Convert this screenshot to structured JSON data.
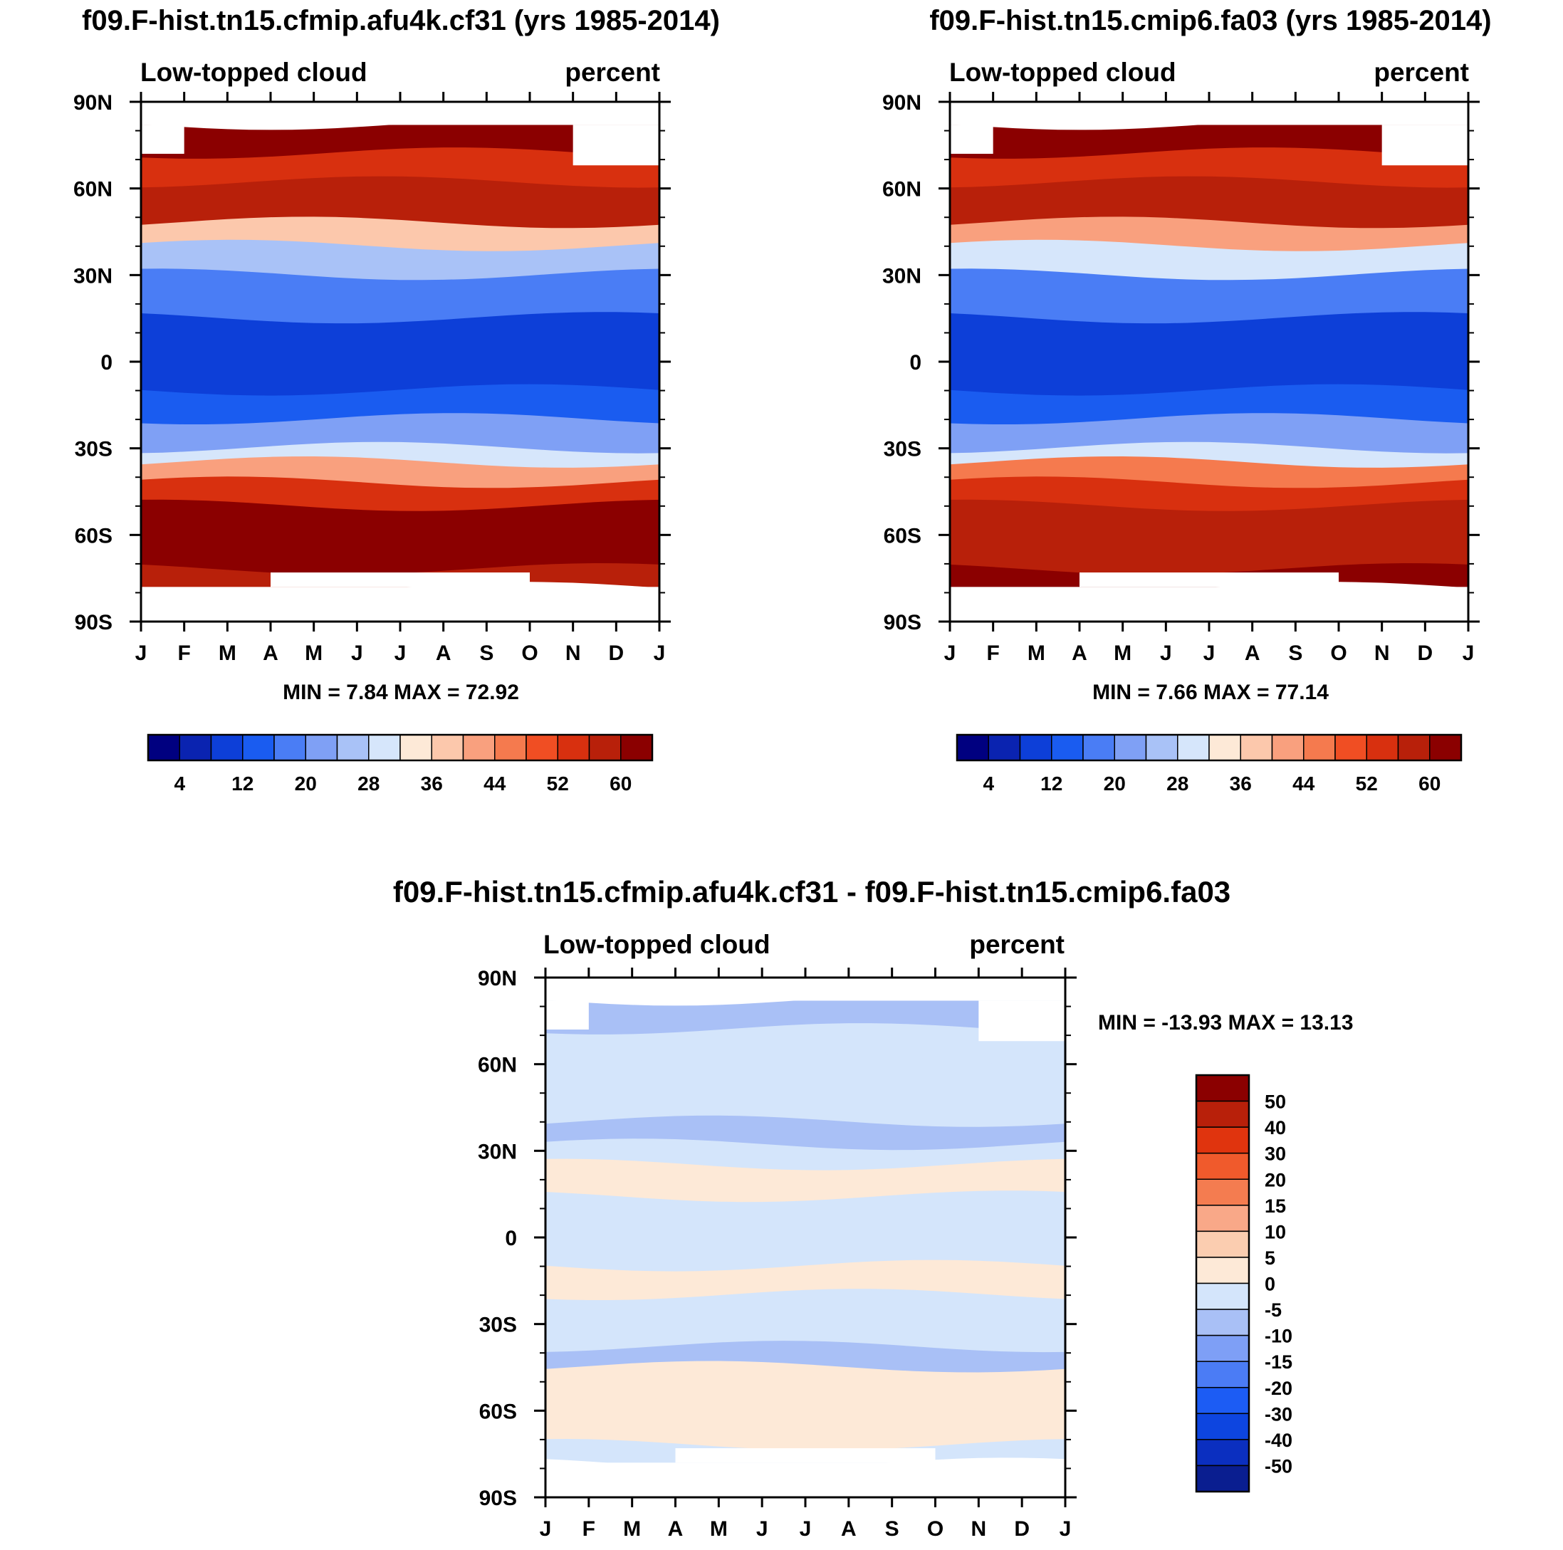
{
  "months": [
    "J",
    "F",
    "M",
    "A",
    "M",
    "J",
    "J",
    "A",
    "S",
    "O",
    "N",
    "D",
    "J"
  ],
  "lat_labels": [
    "90N",
    "60N",
    "30N",
    "0",
    "30S",
    "60S",
    "90S"
  ],
  "palette_abs": [
    "#000080",
    "#0a23b0",
    "#0d3fd8",
    "#1a5cf0",
    "#4a7df5",
    "#7fa0f5",
    "#a9c2f7",
    "#d6e6fb",
    "#fde9d7",
    "#fcc8ac",
    "#f9a07e",
    "#f57a4e",
    "#f04e23",
    "#d8300f",
    "#b8200a",
    "#8b0000"
  ],
  "palette_diff": [
    "#0a1e90",
    "#0b2fc0",
    "#0d45e0",
    "#1c5cf4",
    "#4b7cf5",
    "#7e9ff6",
    "#a9c0f6",
    "#d4e5fb",
    "#fde9d7",
    "#fbcdb0",
    "#f9a888",
    "#f47c50",
    "#f05a2c",
    "#e0340e",
    "#b8200a",
    "#8b0000"
  ],
  "chart_data": [
    {
      "type": "heatmap",
      "title": "f09.F-hist.tn15.cfmip.afu4k.cf31 (yrs 1985-2014)",
      "left_label": "Low-topped cloud",
      "right_label": "percent",
      "x": [
        "J",
        "F",
        "M",
        "A",
        "M",
        "J",
        "J",
        "A",
        "S",
        "O",
        "N",
        "D",
        "J"
      ],
      "ylim": [
        -90,
        90
      ],
      "min_max": "MIN =   7.84 MAX =  72.92",
      "colorbar_labels": [
        "4",
        "12",
        "20",
        "28",
        "36",
        "44",
        "52",
        "60"
      ],
      "levels": [
        0,
        4,
        8,
        12,
        16,
        20,
        24,
        28,
        32,
        36,
        40,
        44,
        48,
        52,
        56,
        60
      ],
      "bands": [
        {
          "lat": [
            72,
            82
          ],
          "value": 62
        },
        {
          "lat": [
            62,
            72
          ],
          "value": 52
        },
        {
          "lat": [
            48,
            62
          ],
          "value": 56
        },
        {
          "lat": [
            40,
            48
          ],
          "value": 38
        },
        {
          "lat": [
            30,
            40
          ],
          "value": 26
        },
        {
          "lat": [
            15,
            30
          ],
          "value": 18
        },
        {
          "lat": [
            -10,
            15
          ],
          "value": 10
        },
        {
          "lat": [
            -20,
            -10
          ],
          "value": 15
        },
        {
          "lat": [
            -30,
            -20
          ],
          "value": 22
        },
        {
          "lat": [
            -35,
            -30
          ],
          "value": 30
        },
        {
          "lat": [
            -42,
            -35
          ],
          "value": 42
        },
        {
          "lat": [
            -50,
            -42
          ],
          "value": 52
        },
        {
          "lat": [
            -72,
            -50
          ],
          "value": 60
        },
        {
          "lat": [
            -78,
            -72
          ],
          "value": 56
        }
      ]
    },
    {
      "type": "heatmap",
      "title": "f09.F-hist.tn15.cmip6.fa03 (yrs 1985-2014)",
      "left_label": "Low-topped cloud",
      "right_label": "percent",
      "x": [
        "J",
        "F",
        "M",
        "A",
        "M",
        "J",
        "J",
        "A",
        "S",
        "O",
        "N",
        "D",
        "J"
      ],
      "ylim": [
        -90,
        90
      ],
      "min_max": "MIN =   7.66 MAX =  77.14",
      "colorbar_labels": [
        "4",
        "12",
        "20",
        "28",
        "36",
        "44",
        "52",
        "60"
      ],
      "levels": [
        0,
        4,
        8,
        12,
        16,
        20,
        24,
        28,
        32,
        36,
        40,
        44,
        48,
        52,
        56,
        60
      ],
      "bands": [
        {
          "lat": [
            72,
            82
          ],
          "value": 62
        },
        {
          "lat": [
            62,
            72
          ],
          "value": 54
        },
        {
          "lat": [
            48,
            62
          ],
          "value": 57
        },
        {
          "lat": [
            40,
            48
          ],
          "value": 40
        },
        {
          "lat": [
            30,
            40
          ],
          "value": 28
        },
        {
          "lat": [
            15,
            30
          ],
          "value": 19
        },
        {
          "lat": [
            -10,
            15
          ],
          "value": 9
        },
        {
          "lat": [
            -20,
            -10
          ],
          "value": 14
        },
        {
          "lat": [
            -30,
            -20
          ],
          "value": 21
        },
        {
          "lat": [
            -35,
            -30
          ],
          "value": 30
        },
        {
          "lat": [
            -42,
            -35
          ],
          "value": 44
        },
        {
          "lat": [
            -50,
            -42
          ],
          "value": 53
        },
        {
          "lat": [
            -72,
            -50
          ],
          "value": 58
        },
        {
          "lat": [
            -78,
            -72
          ],
          "value": 60
        }
      ]
    },
    {
      "type": "heatmap",
      "title": "f09.F-hist.tn15.cfmip.afu4k.cf31 - f09.F-hist.tn15.cmip6.fa03",
      "left_label": "Low-topped cloud",
      "right_label": "percent",
      "x": [
        "J",
        "F",
        "M",
        "A",
        "M",
        "J",
        "J",
        "A",
        "S",
        "O",
        "N",
        "D",
        "J"
      ],
      "ylim": [
        -90,
        90
      ],
      "min_max": "MIN = -13.93 MAX =  13.13",
      "colorbar_labels": [
        "50",
        "40",
        "30",
        "20",
        "15",
        "10",
        "5",
        "0",
        "-5",
        "-10",
        "-15",
        "-20",
        "-30",
        "-40",
        "-50"
      ],
      "levels": [
        -60,
        -50,
        -40,
        -30,
        -20,
        -15,
        -10,
        -5,
        0,
        5,
        10,
        15,
        20,
        30,
        40,
        50
      ],
      "bands": [
        {
          "lat": [
            72,
            82
          ],
          "value": -7
        },
        {
          "lat": [
            62,
            72
          ],
          "value": -3
        },
        {
          "lat": [
            40,
            62
          ],
          "value": -4
        },
        {
          "lat": [
            32,
            40
          ],
          "value": -6
        },
        {
          "lat": [
            25,
            32
          ],
          "value": -3
        },
        {
          "lat": [
            14,
            25
          ],
          "value": 2
        },
        {
          "lat": [
            -10,
            14
          ],
          "value": -2
        },
        {
          "lat": [
            -20,
            -10
          ],
          "value": 2
        },
        {
          "lat": [
            -38,
            -20
          ],
          "value": -2
        },
        {
          "lat": [
            -45,
            -38
          ],
          "value": -6
        },
        {
          "lat": [
            -58,
            -45
          ],
          "value": 2
        },
        {
          "lat": [
            -72,
            -58
          ],
          "value": 1
        },
        {
          "lat": [
            -78,
            -72
          ],
          "value": -1
        }
      ]
    }
  ]
}
